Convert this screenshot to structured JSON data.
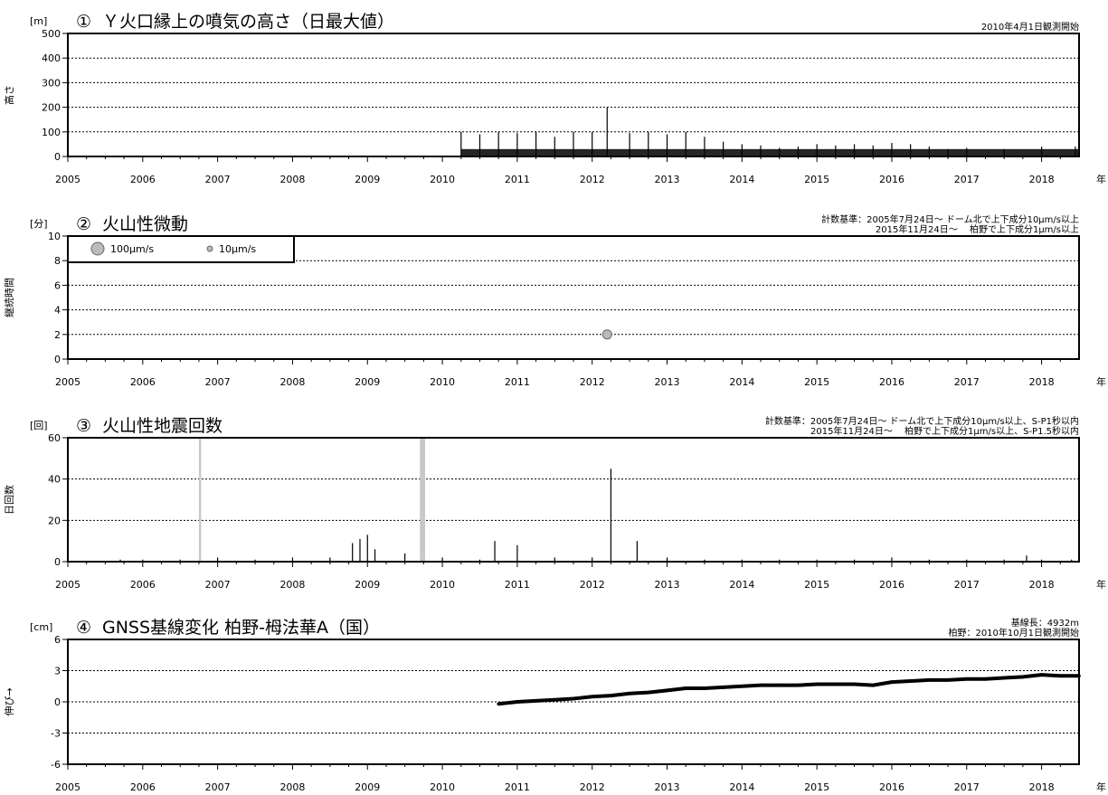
{
  "nen": "年",
  "x_ticks": [
    "2005",
    "2006",
    "2007",
    "2008",
    "2009",
    "2010",
    "2011",
    "2012",
    "2013",
    "2014",
    "2015",
    "2016",
    "2017",
    "2018"
  ],
  "panels": [
    {
      "unit": "[m]",
      "number": "①",
      "title": "Ｙ火口縁上の噴気の高さ（日最大値）",
      "ylabel": "高さ",
      "note_lines": [
        "2010年4月1日観測開始"
      ],
      "yticks": [
        "0",
        "100",
        "200",
        "300",
        "400",
        "500"
      ]
    },
    {
      "unit": "[分]",
      "number": "②",
      "title": "火山性微動",
      "ylabel": "継続時間",
      "note_lines": [
        "計数基準：2005年7月24日～ ドーム北で上下成分10μm/s以上",
        "2015年11月24日～　 柏野で上下成分1μm/s以上"
      ],
      "yticks": [
        "0",
        "2",
        "4",
        "6",
        "8",
        "10"
      ],
      "legend": [
        "100μm/s",
        "10μm/s"
      ]
    },
    {
      "unit": "[回]",
      "number": "③",
      "title": "火山性地震回数",
      "ylabel": "日回数",
      "note_lines": [
        "計数基準：2005年7月24日～ ドーム北で上下成分10μm/s以上、S-P1秒以内",
        "2015年11月24日～　 柏野で上下成分1μm/s以上、S-P1.5秒以内"
      ],
      "yticks": [
        "0",
        "20",
        "40",
        "60"
      ]
    },
    {
      "unit": "[cm]",
      "number": "④",
      "title": "GNSS基線変化 柏野-栂法華A（国）",
      "ylabel": "伸び→",
      "note_lines": [
        "基線長：4932m",
        "柏野：2010年10月1日観測開始"
      ],
      "yticks": [
        "-6",
        "-3",
        "0",
        "3",
        "6"
      ]
    }
  ],
  "chart_data": [
    {
      "type": "bar",
      "title": "Ｙ火口縁上の噴気の高さ（日最大値）",
      "ylabel": "高さ",
      "unit": "m",
      "xlim": [
        2005.0,
        2018.5
      ],
      "ylim": [
        0,
        500
      ],
      "grid": true,
      "observation_start": 2010.25,
      "series": [
        {
          "x": [
            2010.25,
            2010.5,
            2010.75,
            2011.0,
            2011.25,
            2011.5,
            2011.75,
            2012.0,
            2012.2,
            2012.5,
            2012.75,
            2013.0,
            2013.25,
            2013.5,
            2013.75,
            2014.0,
            2014.25,
            2014.5,
            2014.75,
            2015.0,
            2015.25,
            2015.5,
            2015.75,
            2016.0,
            2016.25,
            2016.5,
            2016.75,
            2017.0,
            2017.5,
            2018.0,
            2018.45
          ],
          "values": [
            100,
            90,
            100,
            95,
            100,
            80,
            100,
            100,
            200,
            95,
            100,
            90,
            100,
            80,
            60,
            50,
            45,
            35,
            40,
            50,
            45,
            50,
            45,
            55,
            50,
            40,
            30,
            35,
            30,
            40,
            40
          ]
        }
      ]
    },
    {
      "type": "scatter",
      "title": "火山性微動",
      "ylabel": "継続時間",
      "unit": "分",
      "xlim": [
        2005.0,
        2018.5
      ],
      "ylim": [
        0,
        10
      ],
      "grid": true,
      "series": [
        {
          "name": "100μm/s",
          "x": [],
          "y": []
        },
        {
          "name": "10μm/s",
          "x": [
            2012.2
          ],
          "y": [
            2
          ]
        }
      ]
    },
    {
      "type": "bar",
      "title": "火山性地震回数",
      "ylabel": "日回数",
      "unit": "回",
      "xlim": [
        2005.0,
        2018.5
      ],
      "ylim": [
        0,
        60
      ],
      "grid": true,
      "no_data_periods": [
        [
          2006.75,
          2006.78
        ],
        [
          2009.7,
          2009.77
        ]
      ],
      "series": [
        {
          "x": [
            2005.7,
            2006.0,
            2006.5,
            2007.0,
            2007.5,
            2008.0,
            2008.5,
            2008.8,
            2008.9,
            2009.0,
            2009.1,
            2009.5,
            2010.0,
            2010.5,
            2010.7,
            2011.0,
            2011.5,
            2012.0,
            2012.25,
            2012.6,
            2013.0,
            2013.5,
            2014.0,
            2014.5,
            2015.0,
            2015.5,
            2016.0,
            2016.5,
            2017.0,
            2017.5,
            2017.8,
            2018.0,
            2018.4
          ],
          "values": [
            1,
            1,
            1,
            2,
            1,
            2,
            2,
            9,
            11,
            13,
            6,
            4,
            2,
            1,
            10,
            8,
            2,
            2,
            45,
            10,
            2,
            1,
            1,
            1,
            1,
            1,
            2,
            1,
            1,
            1,
            3,
            1,
            1
          ]
        }
      ]
    },
    {
      "type": "scatter",
      "title": "GNSS基線変化 柏野-栂法華A（国）",
      "ylabel": "伸び→",
      "unit": "cm",
      "xlim": [
        2005.0,
        2018.5
      ],
      "ylim": [
        -6,
        6
      ],
      "grid": true,
      "observation_start": 2010.75,
      "series": [
        {
          "x": [
            2010.75,
            2011.0,
            2011.25,
            2011.5,
            2011.75,
            2012.0,
            2012.25,
            2012.5,
            2012.75,
            2013.0,
            2013.25,
            2013.5,
            2013.75,
            2014.0,
            2014.25,
            2014.5,
            2014.75,
            2015.0,
            2015.25,
            2015.5,
            2015.75,
            2016.0,
            2016.25,
            2016.5,
            2016.75,
            2017.0,
            2017.25,
            2017.5,
            2017.75,
            2018.0,
            2018.25,
            2018.5
          ],
          "y": [
            -0.2,
            0.0,
            0.1,
            0.2,
            0.3,
            0.5,
            0.6,
            0.8,
            0.9,
            1.1,
            1.3,
            1.3,
            1.4,
            1.5,
            1.6,
            1.6,
            1.6,
            1.7,
            1.7,
            1.7,
            1.6,
            1.9,
            2.0,
            2.1,
            2.1,
            2.2,
            2.2,
            2.3,
            2.4,
            2.6,
            2.5,
            2.5
          ]
        }
      ]
    }
  ]
}
